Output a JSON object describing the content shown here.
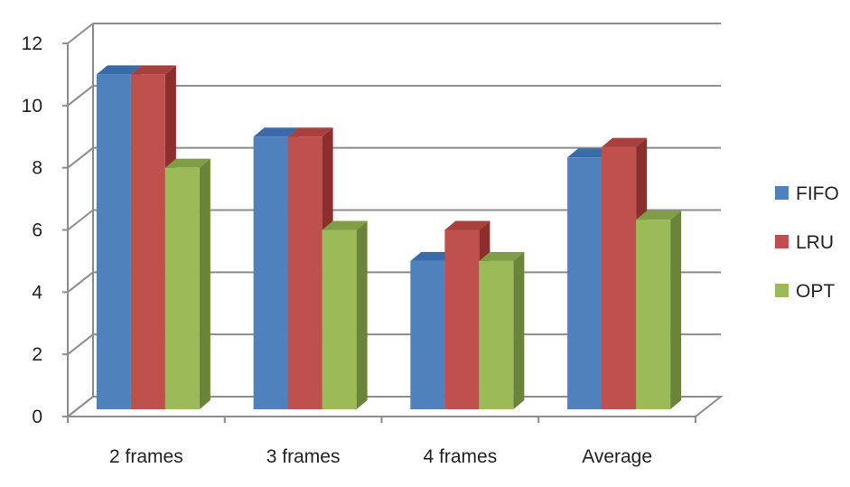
{
  "chart_data": {
    "type": "bar",
    "categories": [
      "2 frames",
      "3 frames",
      "4 frames",
      "Average"
    ],
    "series": [
      {
        "name": "FIFO",
        "values": [
          11,
          9,
          5,
          8.33
        ],
        "color": "#4F81BD",
        "top_color": "#3A6BA8",
        "side_color": "#2F5A8F"
      },
      {
        "name": "LRU",
        "values": [
          11,
          9,
          6,
          8.67
        ],
        "color": "#C0504D",
        "top_color": "#A8403D",
        "side_color": "#8C2E2C"
      },
      {
        "name": "OPT",
        "values": [
          8,
          6,
          5,
          6.33
        ],
        "color": "#9BBB59",
        "top_color": "#809E45",
        "side_color": "#6A8438"
      }
    ],
    "y_ticks": [
      "0",
      "2",
      "4",
      "6",
      "8",
      "10",
      "12"
    ],
    "ylim": [
      0,
      12
    ],
    "grid": true,
    "legend_position": "right",
    "title": "",
    "xlabel": "",
    "ylabel": ""
  }
}
